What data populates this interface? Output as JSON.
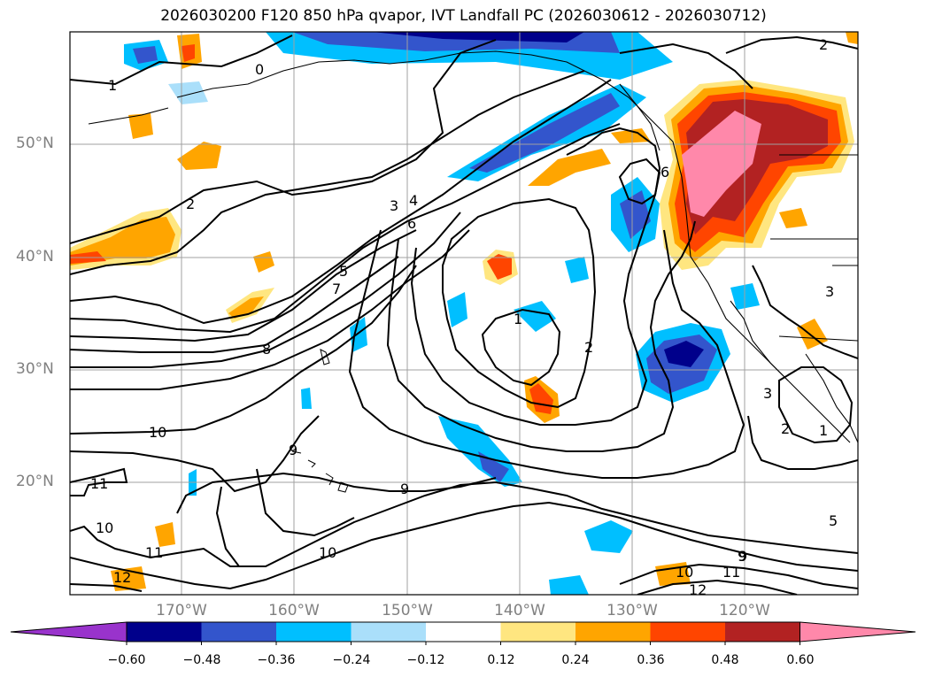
{
  "title": "2026030200 F120 850 hPa qvapor, IVT Landfall PC (2026030612 - 2026030712)",
  "lat_labels": [
    "50°N",
    "40°N",
    "30°N",
    "20°N"
  ],
  "lon_labels": [
    "170°W",
    "160°W",
    "150°W",
    "140°W",
    "130°W",
    "120°W"
  ],
  "colorbar": {
    "ticks": [
      "−0.60",
      "−0.48",
      "−0.36",
      "−0.24",
      "−0.12",
      "0.12",
      "0.24",
      "0.36",
      "0.48",
      "0.60"
    ],
    "colors": [
      "#9933cc",
      "#00008b",
      "#3355cc",
      "#00bfff",
      "#aadffa",
      "#ffffff",
      "#ffe680",
      "#ffa500",
      "#ff4500",
      "#b22222",
      "#ff88aa"
    ]
  },
  "contour_labels": [
    "0",
    "1",
    "2",
    "2",
    "3",
    "4",
    "6",
    "5",
    "7",
    "8",
    "6",
    "1",
    "2",
    "10",
    "9",
    "9",
    "9",
    "11",
    "10",
    "11",
    "12",
    "10",
    "3",
    "1",
    "2",
    "3",
    "5",
    "9",
    "10",
    "11",
    "12"
  ]
}
